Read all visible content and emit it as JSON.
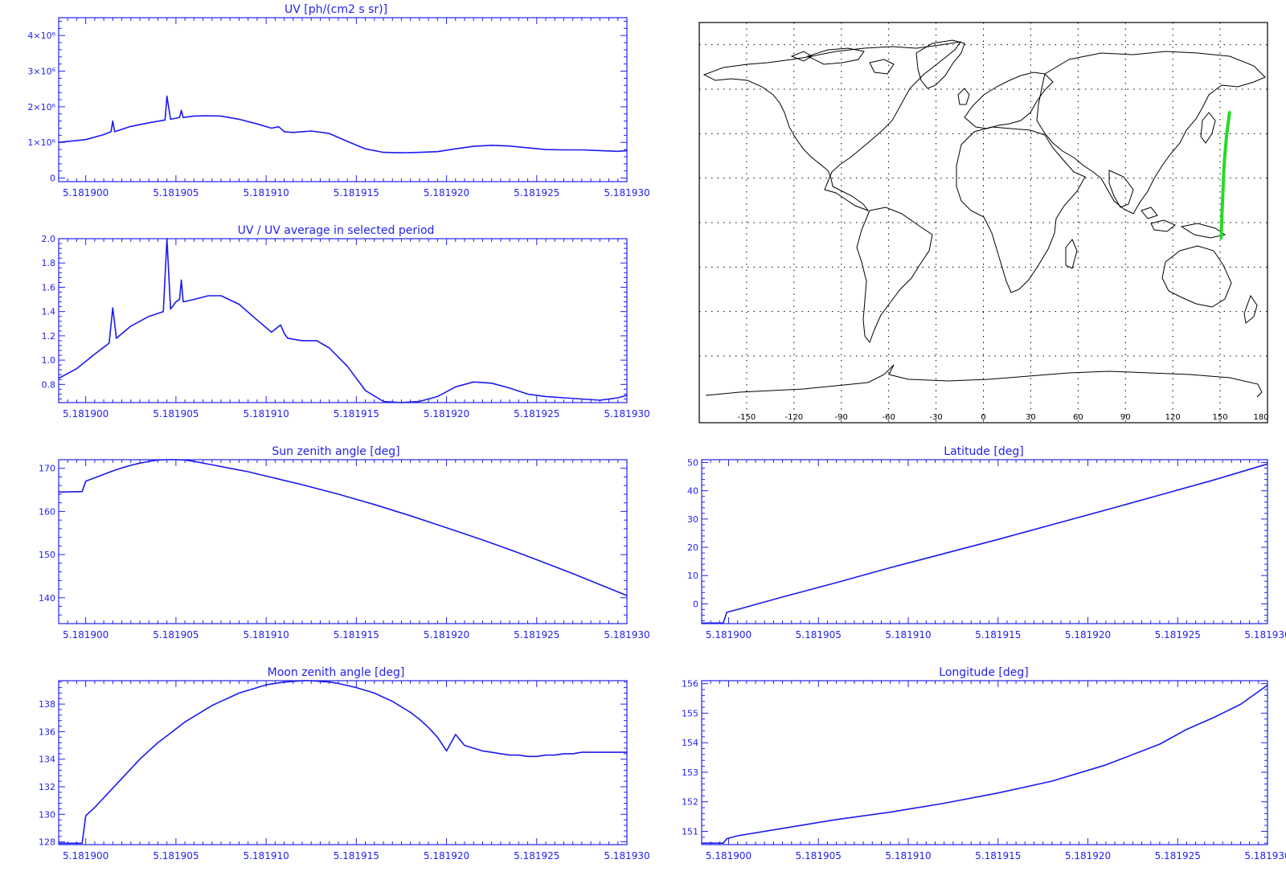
{
  "colors": {
    "axis": "#2222ee",
    "line": "#1a1aee",
    "track": "#22dd22",
    "coast": "#000000",
    "grid": "#000000"
  },
  "chart_data": [
    {
      "id": "uv",
      "type": "line",
      "title": "UV [ph/(cm2 s sr)]",
      "xlabel": "",
      "ylabel": "",
      "xlim": [
        5.1818985,
        5.18193
      ],
      "ylim": [
        -0.1,
        4.5
      ],
      "xticks": [
        5.1819,
        5.181905,
        5.18191,
        5.181915,
        5.18192,
        5.181925,
        5.18193
      ],
      "xtick_labels": [
        "5.181900",
        "5.181905",
        "5.181910",
        "5.181915",
        "5.181920",
        "5.181925",
        "5.181930"
      ],
      "yticks": [
        0,
        1,
        2,
        3,
        4
      ],
      "ytick_labels": [
        "0",
        "1×10⁶",
        "2×10⁶",
        "3×10⁶",
        "4×10⁶"
      ],
      "series": [
        {
          "x": [
            5.1818985,
            5.1819,
            5.181901,
            5.1819014,
            5.1819015,
            5.1819016,
            5.1819025,
            5.1819035,
            5.1819044,
            5.1819045,
            5.1819047,
            5.181905,
            5.1819052,
            5.1819053,
            5.1819054,
            5.181906,
            5.1819067,
            5.1819075,
            5.1819085,
            5.1819095,
            5.1819103,
            5.1819107,
            5.1819109,
            5.181911,
            5.1819115,
            5.1819125,
            5.1819135,
            5.1819145,
            5.1819155,
            5.1819165,
            5.1819175,
            5.1819185,
            5.1819195,
            5.1819205,
            5.1819215,
            5.1819225,
            5.1819235,
            5.1819245,
            5.1819255,
            5.1819265,
            5.1819275,
            5.1819285,
            5.1819295,
            5.18193
          ],
          "y": [
            1.0,
            1.08,
            1.22,
            1.3,
            1.6,
            1.3,
            1.45,
            1.55,
            1.63,
            2.3,
            1.65,
            1.68,
            1.7,
            1.9,
            1.7,
            1.74,
            1.75,
            1.74,
            1.65,
            1.52,
            1.4,
            1.44,
            1.35,
            1.3,
            1.28,
            1.32,
            1.25,
            1.03,
            0.82,
            0.72,
            0.71,
            0.72,
            0.74,
            0.82,
            0.89,
            0.92,
            0.9,
            0.85,
            0.8,
            0.79,
            0.79,
            0.77,
            0.75,
            0.77
          ]
        }
      ]
    },
    {
      "id": "uvratio",
      "type": "line",
      "title": "UV / UV average in selected period",
      "xlabel": "",
      "ylabel": "",
      "xlim": [
        5.1818985,
        5.18193
      ],
      "ylim": [
        0.65,
        2.0
      ],
      "xticks": [
        5.1819,
        5.181905,
        5.18191,
        5.181915,
        5.18192,
        5.181925,
        5.18193
      ],
      "xtick_labels": [
        "5.181900",
        "5.181905",
        "5.181910",
        "5.181915",
        "5.181920",
        "5.181925",
        "5.181930"
      ],
      "yticks": [
        0.8,
        1.0,
        1.2,
        1.4,
        1.6,
        1.8,
        2.0
      ],
      "ytick_labels": [
        "0.8",
        "1.0",
        "1.2",
        "1.4",
        "1.6",
        "1.8",
        "2.0"
      ],
      "series": [
        {
          "x": [
            5.1818985,
            5.1818995,
            5.1819005,
            5.1819013,
            5.1819015,
            5.1819017,
            5.1819025,
            5.1819035,
            5.1819043,
            5.1819045,
            5.1819047,
            5.181905,
            5.1819052,
            5.1819053,
            5.1819054,
            5.181906,
            5.1819068,
            5.1819075,
            5.1819085,
            5.1819095,
            5.1819103,
            5.1819108,
            5.181911,
            5.1819112,
            5.181912,
            5.1819128,
            5.1819135,
            5.1819145,
            5.1819155,
            5.1819165,
            5.1819175,
            5.1819185,
            5.1819195,
            5.1819205,
            5.1819215,
            5.1819225,
            5.1819235,
            5.1819245,
            5.1819255,
            5.1819265,
            5.1819275,
            5.1819285,
            5.1819295,
            5.18193
          ],
          "y": [
            0.85,
            0.93,
            1.05,
            1.14,
            1.43,
            1.18,
            1.28,
            1.36,
            1.4,
            2.0,
            1.42,
            1.48,
            1.5,
            1.66,
            1.48,
            1.5,
            1.53,
            1.53,
            1.46,
            1.33,
            1.23,
            1.29,
            1.22,
            1.18,
            1.16,
            1.16,
            1.1,
            0.95,
            0.75,
            0.66,
            0.65,
            0.66,
            0.7,
            0.78,
            0.82,
            0.81,
            0.77,
            0.72,
            0.7,
            0.69,
            0.68,
            0.67,
            0.69,
            0.71
          ]
        }
      ]
    },
    {
      "id": "sunzen",
      "type": "line",
      "title": "Sun zenith angle [deg]",
      "xlabel": "",
      "ylabel": "",
      "xlim": [
        5.1818985,
        5.18193
      ],
      "ylim": [
        134,
        172
      ],
      "xticks": [
        5.1819,
        5.181905,
        5.18191,
        5.181915,
        5.18192,
        5.181925,
        5.18193
      ],
      "xtick_labels": [
        "5.181900",
        "5.181905",
        "5.181910",
        "5.181915",
        "5.181920",
        "5.181925",
        "5.181930"
      ],
      "yticks": [
        140,
        150,
        160,
        170
      ],
      "ytick_labels": [
        "140",
        "150",
        "160",
        "170"
      ],
      "series": [
        {
          "x": [
            5.1818985,
            5.1818998,
            5.1819,
            5.1819005,
            5.181901,
            5.1819015,
            5.181902,
            5.1819025,
            5.181903,
            5.1819035,
            5.181904,
            5.1819045,
            5.181905,
            5.1819055,
            5.181906,
            5.181907,
            5.181908,
            5.181909,
            5.18191,
            5.181911,
            5.181912,
            5.181913,
            5.181914,
            5.181915,
            5.181916,
            5.181917,
            5.181918,
            5.181919,
            5.18192,
            5.181921,
            5.181922,
            5.181923,
            5.181924,
            5.181925,
            5.181926,
            5.181927,
            5.181928,
            5.181929,
            5.18193
          ],
          "y": [
            164.5,
            164.6,
            167.0,
            167.8,
            168.6,
            169.4,
            170.1,
            170.7,
            171.2,
            171.6,
            171.9,
            172.0,
            172.0,
            171.9,
            171.6,
            170.8,
            170.0,
            169.2,
            168.2,
            167.2,
            166.2,
            165.1,
            164.0,
            162.8,
            161.6,
            160.3,
            159.0,
            157.6,
            156.2,
            154.8,
            153.4,
            151.9,
            150.4,
            148.8,
            147.2,
            145.6,
            143.9,
            142.2,
            140.5
          ]
        }
      ]
    },
    {
      "id": "moonzen",
      "type": "line",
      "title": "Moon zenith angle [deg]",
      "xlabel": "",
      "ylabel": "",
      "xlim": [
        5.1818985,
        5.18193
      ],
      "ylim": [
        127.8,
        139.7
      ],
      "xticks": [
        5.1819,
        5.181905,
        5.18191,
        5.181915,
        5.18192,
        5.181925,
        5.18193
      ],
      "xtick_labels": [
        "5.181900",
        "5.181905",
        "5.181910",
        "5.181915",
        "5.181920",
        "5.181925",
        "5.181930"
      ],
      "yticks": [
        128,
        130,
        132,
        134,
        136,
        138
      ],
      "ytick_labels": [
        "128",
        "130",
        "132",
        "134",
        "136",
        "138"
      ],
      "series": [
        {
          "x": [
            5.1818985,
            5.1818998,
            5.1819,
            5.1819005,
            5.181901,
            5.1819015,
            5.181902,
            5.1819025,
            5.181903,
            5.1819035,
            5.181904,
            5.1819045,
            5.181905,
            5.1819055,
            5.181906,
            5.1819065,
            5.181907,
            5.1819075,
            5.181908,
            5.1819085,
            5.181909,
            5.1819095,
            5.18191,
            5.1819105,
            5.181911,
            5.1819115,
            5.181912,
            5.1819125,
            5.181913,
            5.1819135,
            5.181914,
            5.1819145,
            5.181915,
            5.1819155,
            5.181916,
            5.1819165,
            5.181917,
            5.1819175,
            5.181918,
            5.1819185,
            5.181919,
            5.1819195,
            5.18192,
            5.1819205,
            5.181921,
            5.1819215,
            5.181922,
            5.1819225,
            5.181923,
            5.1819235,
            5.181924,
            5.1819245,
            5.181925,
            5.1819255,
            5.181926,
            5.1819265,
            5.181927,
            5.1819275,
            5.181928,
            5.1819285,
            5.181929,
            5.1819295,
            5.18193
          ],
          "y": [
            127.9,
            127.9,
            129.9,
            130.5,
            131.2,
            131.9,
            132.6,
            133.3,
            134.0,
            134.6,
            135.2,
            135.7,
            136.2,
            136.7,
            137.1,
            137.5,
            137.9,
            138.2,
            138.5,
            138.8,
            139.0,
            139.2,
            139.4,
            139.5,
            139.6,
            139.65,
            139.7,
            139.7,
            139.65,
            139.6,
            139.5,
            139.35,
            139.2,
            139.0,
            138.8,
            138.5,
            138.2,
            137.8,
            137.4,
            136.9,
            136.3,
            135.6,
            134.6,
            135.8,
            135.0,
            134.8,
            134.6,
            134.5,
            134.4,
            134.3,
            134.3,
            134.2,
            134.2,
            134.3,
            134.3,
            134.4,
            134.4,
            134.5,
            134.5,
            134.5,
            134.5,
            134.5,
            134.5
          ]
        }
      ]
    },
    {
      "id": "lat",
      "type": "line",
      "title": "Latitude [deg]",
      "xlabel": "",
      "ylabel": "",
      "xlim": [
        5.1818985,
        5.18193
      ],
      "ylim": [
        -7,
        51
      ],
      "xticks": [
        5.1819,
        5.181905,
        5.18191,
        5.181915,
        5.18192,
        5.181925,
        5.18193
      ],
      "xtick_labels": [
        "5.181900",
        "5.181905",
        "5.181910",
        "5.181915",
        "5.181920",
        "5.181925",
        "5.181930"
      ],
      "yticks": [
        0,
        10,
        20,
        30,
        40,
        50
      ],
      "ytick_labels": [
        "0",
        "10",
        "20",
        "30",
        "40",
        "50"
      ],
      "series": [
        {
          "x": [
            5.1818985,
            5.1818997,
            5.1818999,
            5.1819005,
            5.181903,
            5.181906,
            5.181909,
            5.181912,
            5.181915,
            5.181918,
            5.181921,
            5.181924,
            5.181927,
            5.18193
          ],
          "y": [
            -6.8,
            -6.8,
            -3.0,
            -2.0,
            2.4,
            7.5,
            12.8,
            17.8,
            22.8,
            28.0,
            33.2,
            38.5,
            43.8,
            49.5
          ]
        }
      ]
    },
    {
      "id": "lon",
      "type": "line",
      "title": "Longitude [deg]",
      "xlabel": "",
      "ylabel": "",
      "xlim": [
        5.1818985,
        5.18193
      ],
      "ylim": [
        150.55,
        156.1
      ],
      "xticks": [
        5.1819,
        5.181905,
        5.18191,
        5.181915,
        5.18192,
        5.181925,
        5.18193
      ],
      "xtick_labels": [
        "5.181900",
        "5.181905",
        "5.181910",
        "5.181915",
        "5.181920",
        "5.181925",
        "5.181930"
      ],
      "yticks": [
        151,
        152,
        153,
        154,
        155,
        156
      ],
      "ytick_labels": [
        "151",
        "152",
        "153",
        "154",
        "155",
        "156"
      ],
      "series": [
        {
          "x": [
            5.1818985,
            5.1818997,
            5.1818999,
            5.1819005,
            5.181903,
            5.181906,
            5.181909,
            5.181912,
            5.181915,
            5.181918,
            5.181921,
            5.181924,
            5.1819255,
            5.181927,
            5.1819285,
            5.18193
          ],
          "y": [
            150.6,
            150.6,
            150.75,
            150.85,
            151.1,
            151.4,
            151.65,
            151.95,
            152.3,
            152.7,
            153.25,
            153.95,
            154.45,
            154.85,
            155.3,
            155.95
          ]
        }
      ]
    },
    {
      "id": "map",
      "type": "scatter",
      "title": "",
      "xlim": [
        -180,
        180
      ],
      "ylim": [
        -90,
        90
      ],
      "xticks": [
        -150,
        -120,
        -90,
        -60,
        -30,
        0,
        30,
        60,
        90,
        120,
        150,
        180
      ],
      "xtick_labels": [
        "-150",
        "-120",
        "-90",
        "-60",
        "-30",
        "0",
        "30",
        "60",
        "90",
        "120",
        "150",
        "180"
      ],
      "grid": true,
      "track": {
        "lon": [
          150.6,
          150.8,
          151.1,
          151.4,
          151.7,
          152.0,
          152.3,
          152.7,
          153.3,
          154.0,
          154.9,
          155.9
        ],
        "lat": [
          -6.8,
          -2.0,
          2.4,
          7.5,
          12.8,
          17.8,
          22.8,
          28.0,
          33.2,
          38.5,
          43.8,
          49.5
        ]
      }
    }
  ]
}
